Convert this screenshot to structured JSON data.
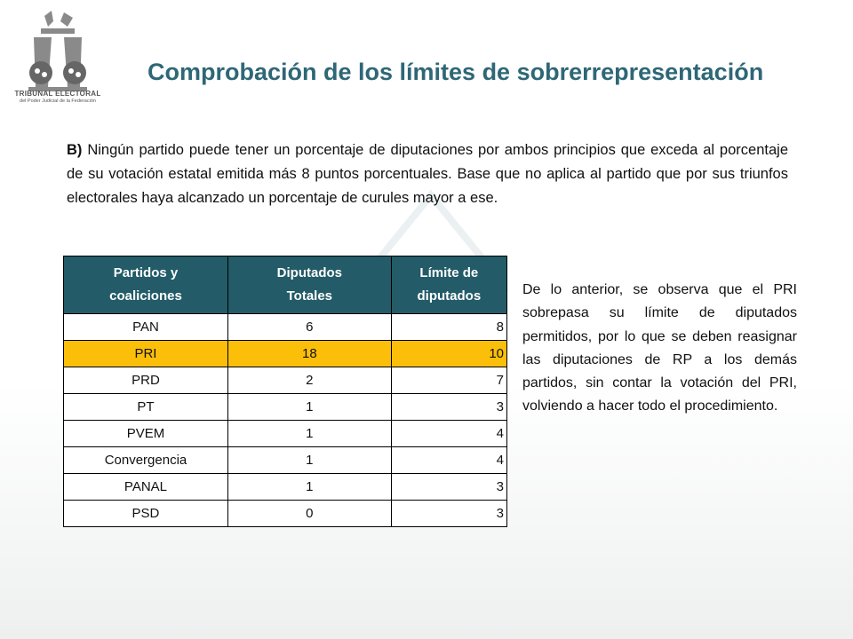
{
  "logo": {
    "line1": "TRIBUNAL ELECTORAL",
    "line2": "del Poder Judicial de la Federación"
  },
  "title": "Comprobación de los límites de sobrerrepresentación",
  "paragraph": {
    "label": "B)",
    "text": "Ningún partido puede tener un porcentaje de diputaciones por ambos principios que exceda al porcentaje de su votación estatal emitida más 8 puntos porcentuales. Base que no aplica al partido que por sus triunfos electorales haya alcanzado un porcentaje de curules mayor a ese."
  },
  "table": {
    "headers": [
      {
        "line1": "Partidos y",
        "line2": "coaliciones"
      },
      {
        "line1": "Diputados",
        "line2": "Totales"
      },
      {
        "line1": "Límite de",
        "line2": "diputados"
      }
    ],
    "highlight_color": "#fbbf0a",
    "header_color": "#235b68",
    "rows": [
      {
        "party": "PAN",
        "total": "6",
        "limit": "8",
        "highlight": false
      },
      {
        "party": "PRI",
        "total": "18",
        "limit": "10",
        "highlight": true
      },
      {
        "party": "PRD",
        "total": "2",
        "limit": "7",
        "highlight": false
      },
      {
        "party": "PT",
        "total": "1",
        "limit": "3",
        "highlight": false
      },
      {
        "party": "PVEM",
        "total": "1",
        "limit": "4",
        "highlight": false
      },
      {
        "party": "Convergencia",
        "total": "1",
        "limit": "4",
        "highlight": false
      },
      {
        "party": "PANAL",
        "total": "1",
        "limit": "3",
        "highlight": false
      },
      {
        "party": "PSD",
        "total": "0",
        "limit": "3",
        "highlight": false
      }
    ]
  },
  "side_note": "De lo anterior, se observa que el PRI sobrepasa su límite de diputados permitidos, por lo que se deben reasignar las diputaciones de RP a los demás partidos, sin contar la votación del PRI, volviendo a hacer todo el procedimiento."
}
